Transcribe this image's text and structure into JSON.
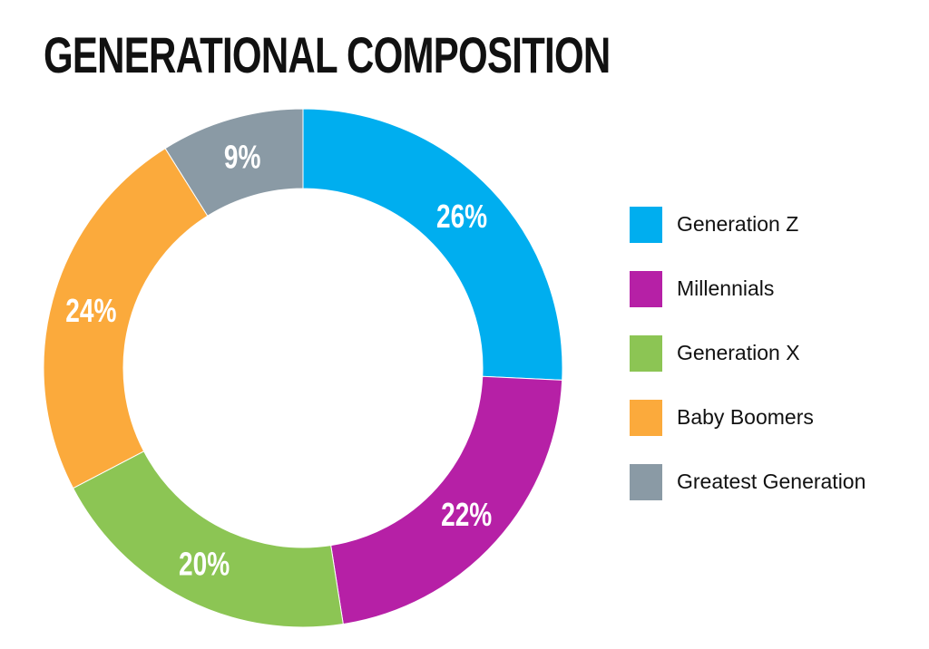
{
  "chart_data": {
    "type": "pie",
    "variant": "donut",
    "title": "GENERATIONAL COMPOSITION",
    "legend_position": "right",
    "slices": [
      {
        "name": "Generation Z",
        "value": 26,
        "label": "26%",
        "color": "#00aeef"
      },
      {
        "name": "Millennials",
        "value": 22,
        "label": "22%",
        "color": "#b620a6"
      },
      {
        "name": "Generation X",
        "value": 20,
        "label": "20%",
        "color": "#8cc554"
      },
      {
        "name": "Baby Boomers",
        "value": 24,
        "label": "24%",
        "color": "#fbaa3c"
      },
      {
        "name": "Greatest Generation",
        "value": 9,
        "label": "9%",
        "color": "#8a9aa5"
      }
    ]
  }
}
